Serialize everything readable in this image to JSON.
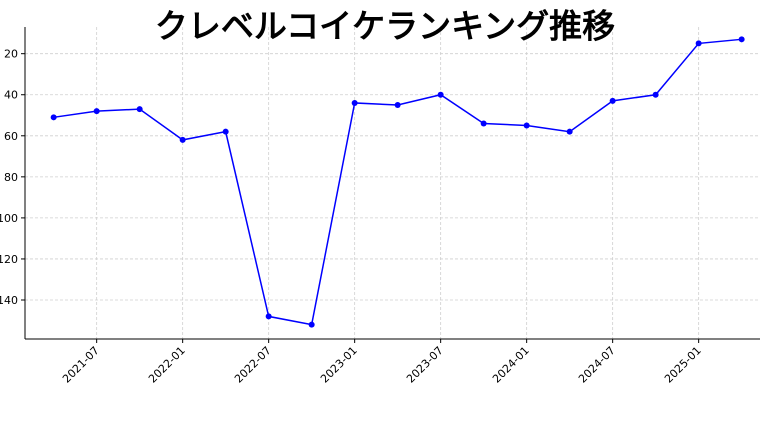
{
  "chart_data": {
    "type": "line",
    "title": "クレベルコイケランキング推移",
    "x": [
      "2021-04",
      "2021-07",
      "2021-10",
      "2022-01",
      "2022-04",
      "2022-07",
      "2022-10",
      "2023-01",
      "2023-04",
      "2023-07",
      "2023-10",
      "2024-01",
      "2024-04",
      "2024-07",
      "2024-10",
      "2025-01",
      "2025-04"
    ],
    "series": [
      {
        "color": "#0000ff",
        "values": [
          51,
          48,
          47,
          62,
          58,
          148,
          152,
          44,
          45,
          40,
          54,
          55,
          58,
          43,
          40,
          15,
          13
        ]
      }
    ],
    "xlim": [
      "2021-02",
      "2025-07"
    ],
    "xticks": [
      "2021-07",
      "2022-01",
      "2022-07",
      "2023-01",
      "2023-07",
      "2024-01",
      "2024-07",
      "2025-01"
    ],
    "ylim": [
      7,
      159
    ],
    "y_inverted": true,
    "yticks": [
      20,
      40,
      60,
      80,
      100,
      120,
      140
    ],
    "grid": true
  }
}
